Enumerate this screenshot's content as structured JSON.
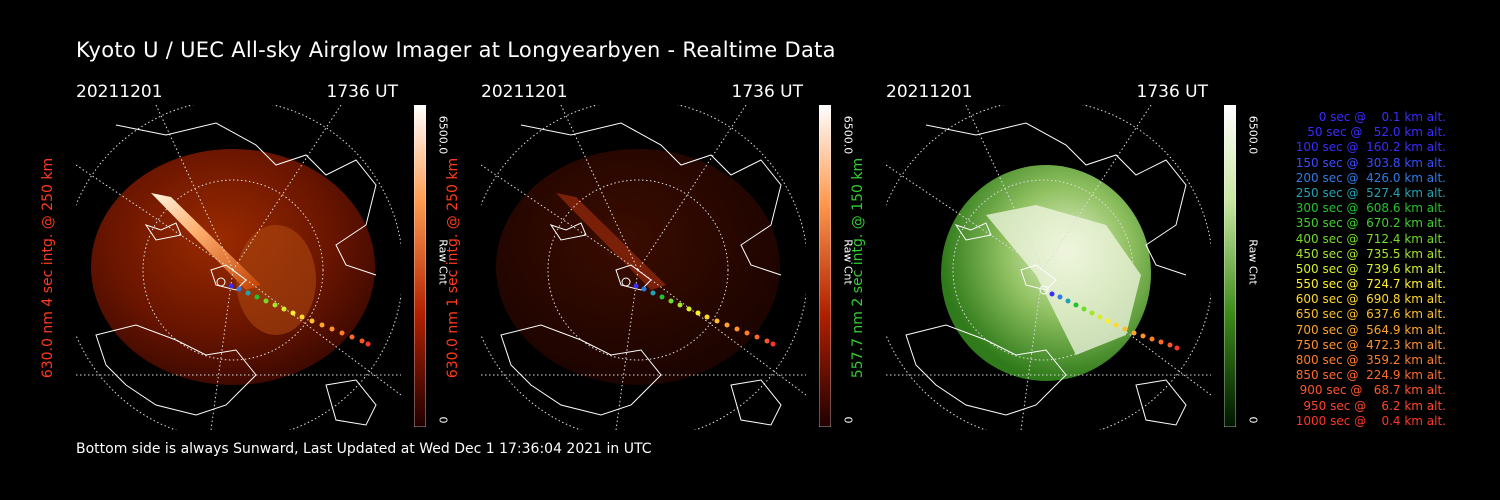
{
  "title": "Kyoto U / UEC All-sky Airglow Imager at Longyearbyen - Realtime Data",
  "footer": "Bottom side is always Sunward, Last Updated at Wed Dec  1 17:36:04 2021 in UTC",
  "panels": [
    {
      "date": "20211201",
      "time": "1736 UT",
      "side_label": "630.0 nm 4 sec intg. @ 250 km",
      "side_color": "#ff3b1a",
      "colorbar": {
        "max": "6500.0",
        "min": "0",
        "unit": "Raw Cnt",
        "colormap": "red"
      }
    },
    {
      "date": "20211201",
      "time": "1736 UT",
      "side_label": "630.0 nm 1 sec intg. @ 250 km",
      "side_color": "#ff3b1a",
      "colorbar": {
        "max": "6500.0",
        "min": "0",
        "unit": "Raw Cnt",
        "colormap": "red"
      }
    },
    {
      "date": "20211201",
      "time": "1736 UT",
      "side_label": "557.7 nm 2 sec intg. @ 150 km",
      "side_color": "#33cc33",
      "colorbar": {
        "max": "6500.0",
        "min": "0",
        "unit": "Raw Cnt",
        "colormap": "green"
      }
    }
  ],
  "legend": [
    {
      "text": "0 sec @    0.1 km alt.",
      "color": "#3a2cff"
    },
    {
      "text": "50 sec @   52.0 km alt.",
      "color": "#3a2cff"
    },
    {
      "text": "100 sec @  160.2 km alt.",
      "color": "#3a2cff"
    },
    {
      "text": "150 sec @  303.8 km alt.",
      "color": "#3a4cff"
    },
    {
      "text": "200 sec @  426.0 km alt.",
      "color": "#2f7be6"
    },
    {
      "text": "250 sec @  527.4 km alt.",
      "color": "#22a3b3"
    },
    {
      "text": "300 sec @  608.6 km alt.",
      "color": "#22c22a"
    },
    {
      "text": "350 sec @  670.2 km alt.",
      "color": "#3fd12a"
    },
    {
      "text": "400 sec @  712.4 km alt.",
      "color": "#6fdc2a"
    },
    {
      "text": "450 sec @  735.5 km alt.",
      "color": "#a6e62a"
    },
    {
      "text": "500 sec @  739.6 km alt.",
      "color": "#d7ef2a"
    },
    {
      "text": "550 sec @  724.7 km alt.",
      "color": "#fff02a"
    },
    {
      "text": "600 sec @  690.8 km alt.",
      "color": "#ffd92a"
    },
    {
      "text": "650 sec @  637.6 km alt.",
      "color": "#ffbf2a"
    },
    {
      "text": "700 sec @  564.9 km alt.",
      "color": "#ffa62a"
    },
    {
      "text": "750 sec @  472.3 km alt.",
      "color": "#ff922a"
    },
    {
      "text": "800 sec @  359.2 km alt.",
      "color": "#ff7e2a"
    },
    {
      "text": "850 sec @  224.9 km alt.",
      "color": "#ff6a2a"
    },
    {
      "text": "900 sec @   68.7 km alt.",
      "color": "#ff552a"
    },
    {
      "text": "950 sec @    6.2 km alt.",
      "color": "#ff452a"
    },
    {
      "text": "1000 sec @    0.4 km alt.",
      "color": "#ff352a"
    }
  ]
}
